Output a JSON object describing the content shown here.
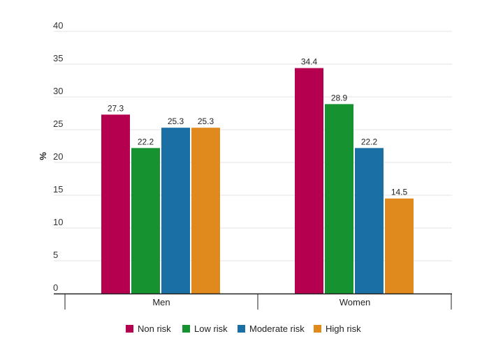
{
  "chart_data": {
    "type": "bar",
    "title": "",
    "xlabel": "",
    "ylabel": "%",
    "ylim": [
      0,
      40
    ],
    "yticks": [
      0,
      5,
      10,
      15,
      20,
      25,
      30,
      35,
      40
    ],
    "grid": true,
    "legend_position": "bottom",
    "categories": [
      "Men",
      "Women"
    ],
    "series": [
      {
        "name": "Non risk",
        "color": "#b5004f",
        "values": [
          27.3,
          34.4
        ]
      },
      {
        "name": "Low risk",
        "color": "#169230",
        "values": [
          22.2,
          28.9
        ]
      },
      {
        "name": "Moderate risk",
        "color": "#1a6fa4",
        "values": [
          25.3,
          22.2
        ]
      },
      {
        "name": "High risk",
        "color": "#e08a1e",
        "values": [
          25.3,
          14.5
        ]
      }
    ]
  }
}
